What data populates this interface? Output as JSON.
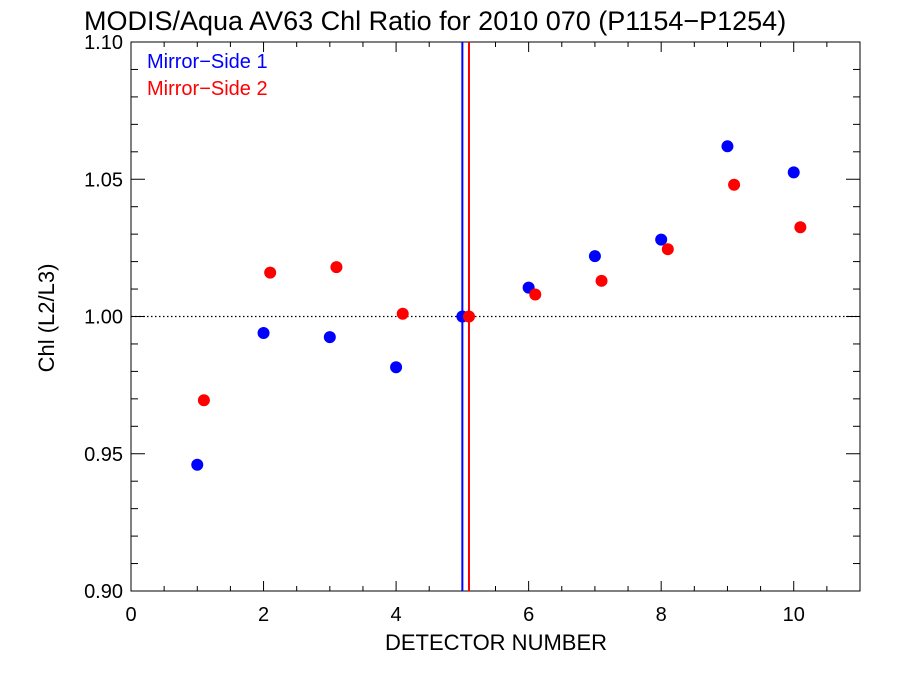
{
  "chart_data": {
    "type": "scatter",
    "title": "MODIS/Aqua AV63 Chl Ratio for 2010 070 (P1154−P1254)",
    "xlabel": "DETECTOR NUMBER",
    "ylabel": "Chl (L2/L3)",
    "xlim": [
      0,
      11
    ],
    "ylim": [
      0.9,
      1.1
    ],
    "xticks": [
      0,
      2,
      4,
      6,
      8,
      10
    ],
    "xtick_labels": [
      "0",
      "2",
      "4",
      "6",
      "8",
      "10"
    ],
    "yticks": [
      0.9,
      0.95,
      1.0,
      1.05,
      1.1
    ],
    "ytick_labels": [
      "0.90",
      "0.95",
      "1.00",
      "1.05",
      "1.10"
    ],
    "reference_line_y": 1.0,
    "legend_position": "top-left",
    "series": [
      {
        "name": "Mirror−Side 1",
        "color": "#0000ff",
        "x": [
          1,
          2,
          3,
          4,
          5,
          6,
          7,
          8,
          9,
          10
        ],
        "y": [
          0.946,
          0.994,
          0.9925,
          0.9815,
          1.0,
          1.0105,
          1.022,
          1.028,
          1.062,
          1.0525
        ],
        "vertical_line_x": 5.0
      },
      {
        "name": "Mirror−Side 2",
        "color": "#ff0000",
        "x": [
          1.1,
          2.1,
          3.1,
          4.1,
          5.1,
          6.1,
          7.1,
          8.1,
          9.1,
          10.1
        ],
        "y": [
          0.9695,
          1.016,
          1.018,
          1.001,
          1.0,
          1.008,
          1.013,
          1.0245,
          1.048,
          1.0325
        ],
        "vertical_line_x": 5.1
      }
    ]
  }
}
